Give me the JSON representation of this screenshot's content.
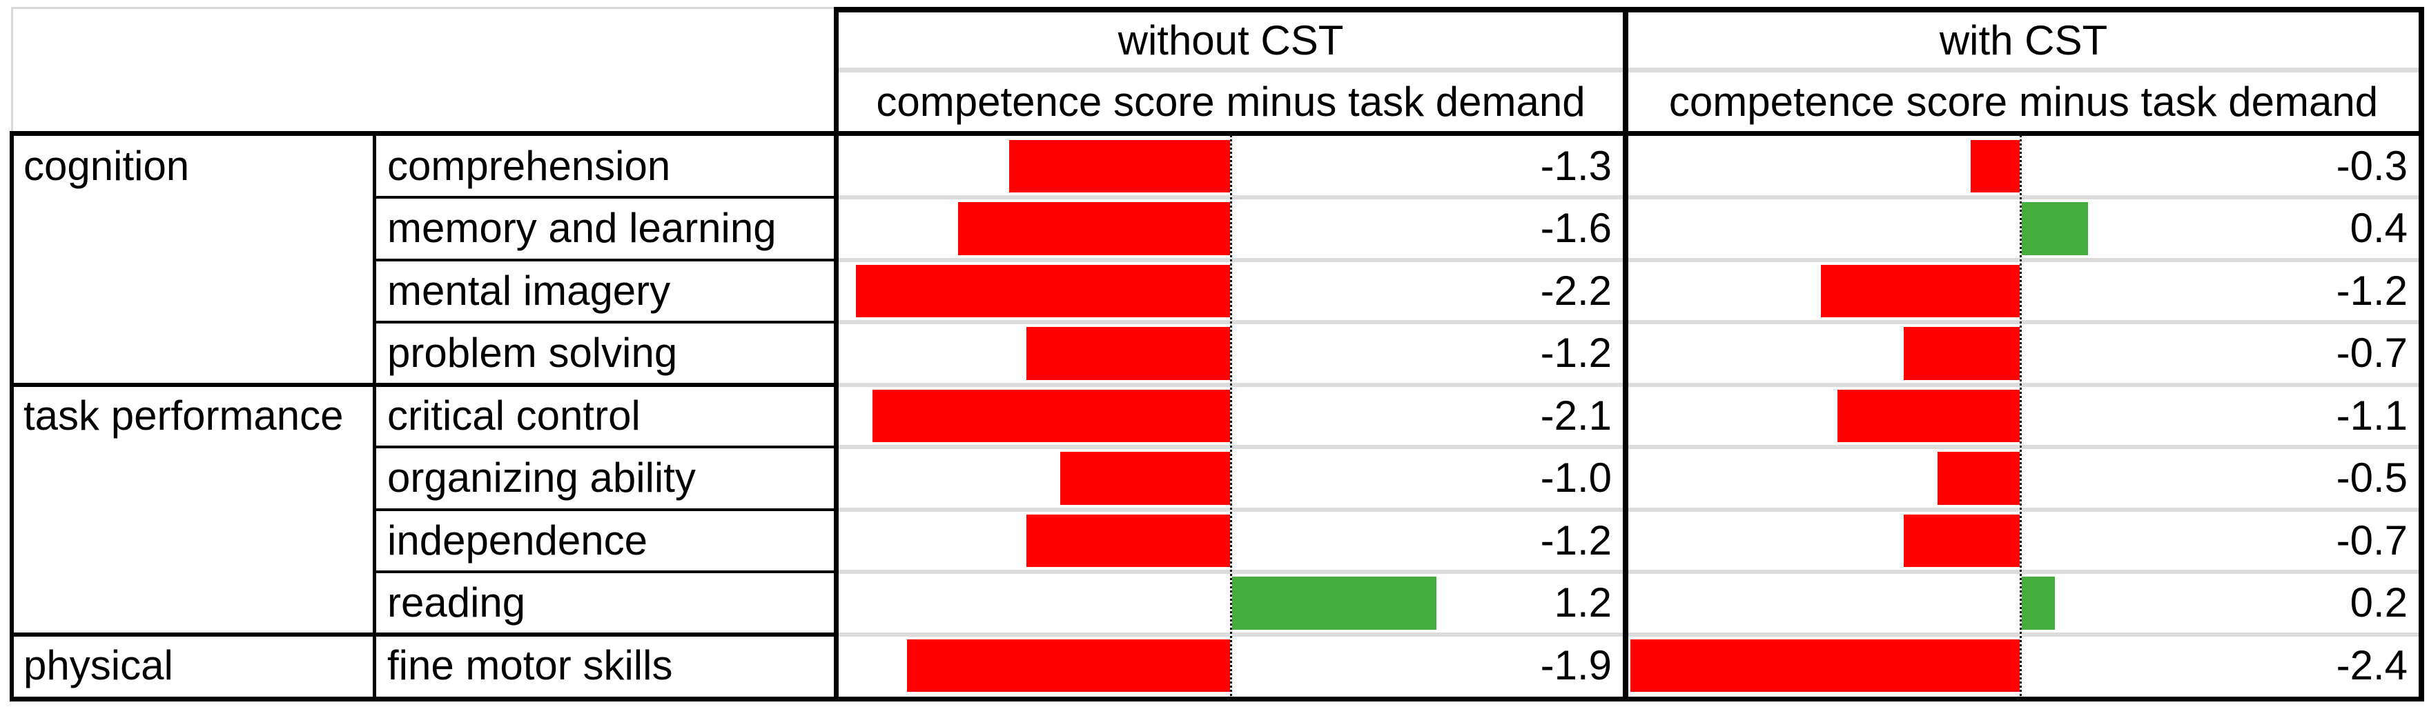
{
  "header": {
    "groups": [
      {
        "title": "without CST",
        "subtitle": "competence score minus task demand"
      },
      {
        "title": "with CST",
        "subtitle": "competence score minus task demand"
      }
    ]
  },
  "categories": [
    {
      "label": "cognition",
      "span": 4
    },
    {
      "label": "task performance",
      "span": 4
    },
    {
      "label": "physical",
      "span": 1
    }
  ],
  "rows": [
    {
      "item": "comprehension",
      "without_cst": -1.3,
      "with_cst": -0.3
    },
    {
      "item": "memory and learning",
      "without_cst": -1.6,
      "with_cst": 0.4
    },
    {
      "item": "mental imagery",
      "without_cst": -2.2,
      "with_cst": -1.2
    },
    {
      "item": "problem solving",
      "without_cst": -1.2,
      "with_cst": -0.7
    },
    {
      "item": "critical control",
      "without_cst": -2.1,
      "with_cst": -1.1
    },
    {
      "item": "organizing ability",
      "without_cst": -1.0,
      "with_cst": -0.5
    },
    {
      "item": "independence",
      "without_cst": -1.2,
      "with_cst": -0.7
    },
    {
      "item": "reading",
      "without_cst": 1.2,
      "with_cst": 0.2
    },
    {
      "item": "fine motor skills",
      "without_cst": -1.9,
      "with_cst": -2.4
    }
  ],
  "colors": {
    "negative_bar": "#fe0000",
    "positive_bar": "#44ad3b",
    "gridline": "#dcdcdc",
    "border": "#000000",
    "background": "#ffffff"
  },
  "chart_data": {
    "type": "bar",
    "orientation": "horizontal",
    "title": "",
    "xlabel": "competence score minus task demand",
    "ylabel": "",
    "xlim": [
      -2.4,
      2.4
    ],
    "grid": "light horizontal gridlines between rows",
    "zero_axis_style": "dotted vertical line",
    "categories": [
      "comprehension",
      "memory and learning",
      "mental imagery",
      "problem solving",
      "critical control",
      "organizing ability",
      "independence",
      "reading",
      "fine motor skills"
    ],
    "category_groups": [
      {
        "label": "cognition",
        "categories": [
          "comprehension",
          "memory and learning",
          "mental imagery",
          "problem solving"
        ]
      },
      {
        "label": "task performance",
        "categories": [
          "critical control",
          "organizing ability",
          "independence",
          "reading"
        ]
      },
      {
        "label": "physical",
        "categories": [
          "fine motor skills"
        ]
      }
    ],
    "series": [
      {
        "name": "without CST",
        "values": [
          -1.3,
          -1.6,
          -2.2,
          -1.2,
          -2.1,
          -1.0,
          -1.2,
          1.2,
          -1.9
        ]
      },
      {
        "name": "with CST",
        "values": [
          -0.3,
          0.4,
          -1.2,
          -0.7,
          -1.1,
          -0.5,
          -0.7,
          0.2,
          -2.4
        ]
      }
    ],
    "negative_color": "#fe0000",
    "positive_color": "#44ad3b",
    "legend": "none"
  }
}
